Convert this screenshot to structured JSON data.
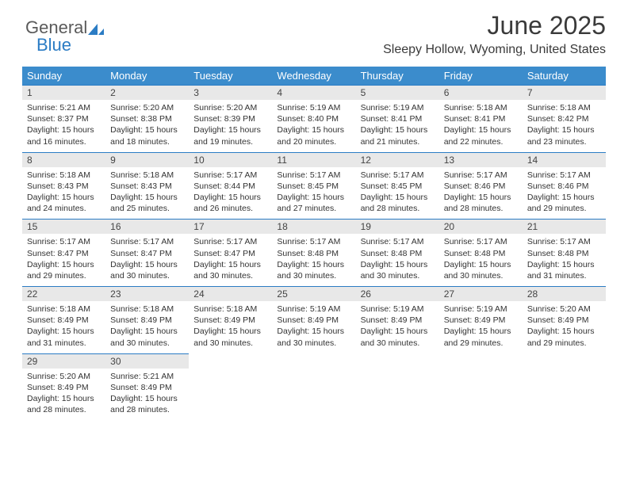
{
  "brand": {
    "word1": "General",
    "word2": "Blue",
    "icon_color": "#2b7cc4"
  },
  "title": "June 2025",
  "subtitle": "Sleepy Hollow, Wyoming, United States",
  "colors": {
    "header_bg": "#3b8ccc",
    "header_text": "#ffffff",
    "daynum_bg": "#e8e8e8",
    "divider": "#2b7cc4",
    "text": "#333333"
  },
  "weekdays": [
    "Sunday",
    "Monday",
    "Tuesday",
    "Wednesday",
    "Thursday",
    "Friday",
    "Saturday"
  ],
  "days": [
    {
      "n": 1,
      "sunrise": "5:21 AM",
      "sunset": "8:37 PM",
      "daylight": "15 hours and 16 minutes."
    },
    {
      "n": 2,
      "sunrise": "5:20 AM",
      "sunset": "8:38 PM",
      "daylight": "15 hours and 18 minutes."
    },
    {
      "n": 3,
      "sunrise": "5:20 AM",
      "sunset": "8:39 PM",
      "daylight": "15 hours and 19 minutes."
    },
    {
      "n": 4,
      "sunrise": "5:19 AM",
      "sunset": "8:40 PM",
      "daylight": "15 hours and 20 minutes."
    },
    {
      "n": 5,
      "sunrise": "5:19 AM",
      "sunset": "8:41 PM",
      "daylight": "15 hours and 21 minutes."
    },
    {
      "n": 6,
      "sunrise": "5:18 AM",
      "sunset": "8:41 PM",
      "daylight": "15 hours and 22 minutes."
    },
    {
      "n": 7,
      "sunrise": "5:18 AM",
      "sunset": "8:42 PM",
      "daylight": "15 hours and 23 minutes."
    },
    {
      "n": 8,
      "sunrise": "5:18 AM",
      "sunset": "8:43 PM",
      "daylight": "15 hours and 24 minutes."
    },
    {
      "n": 9,
      "sunrise": "5:18 AM",
      "sunset": "8:43 PM",
      "daylight": "15 hours and 25 minutes."
    },
    {
      "n": 10,
      "sunrise": "5:17 AM",
      "sunset": "8:44 PM",
      "daylight": "15 hours and 26 minutes."
    },
    {
      "n": 11,
      "sunrise": "5:17 AM",
      "sunset": "8:45 PM",
      "daylight": "15 hours and 27 minutes."
    },
    {
      "n": 12,
      "sunrise": "5:17 AM",
      "sunset": "8:45 PM",
      "daylight": "15 hours and 28 minutes."
    },
    {
      "n": 13,
      "sunrise": "5:17 AM",
      "sunset": "8:46 PM",
      "daylight": "15 hours and 28 minutes."
    },
    {
      "n": 14,
      "sunrise": "5:17 AM",
      "sunset": "8:46 PM",
      "daylight": "15 hours and 29 minutes."
    },
    {
      "n": 15,
      "sunrise": "5:17 AM",
      "sunset": "8:47 PM",
      "daylight": "15 hours and 29 minutes."
    },
    {
      "n": 16,
      "sunrise": "5:17 AM",
      "sunset": "8:47 PM",
      "daylight": "15 hours and 30 minutes."
    },
    {
      "n": 17,
      "sunrise": "5:17 AM",
      "sunset": "8:47 PM",
      "daylight": "15 hours and 30 minutes."
    },
    {
      "n": 18,
      "sunrise": "5:17 AM",
      "sunset": "8:48 PM",
      "daylight": "15 hours and 30 minutes."
    },
    {
      "n": 19,
      "sunrise": "5:17 AM",
      "sunset": "8:48 PM",
      "daylight": "15 hours and 30 minutes."
    },
    {
      "n": 20,
      "sunrise": "5:17 AM",
      "sunset": "8:48 PM",
      "daylight": "15 hours and 30 minutes."
    },
    {
      "n": 21,
      "sunrise": "5:17 AM",
      "sunset": "8:48 PM",
      "daylight": "15 hours and 31 minutes."
    },
    {
      "n": 22,
      "sunrise": "5:18 AM",
      "sunset": "8:49 PM",
      "daylight": "15 hours and 31 minutes."
    },
    {
      "n": 23,
      "sunrise": "5:18 AM",
      "sunset": "8:49 PM",
      "daylight": "15 hours and 30 minutes."
    },
    {
      "n": 24,
      "sunrise": "5:18 AM",
      "sunset": "8:49 PM",
      "daylight": "15 hours and 30 minutes."
    },
    {
      "n": 25,
      "sunrise": "5:19 AM",
      "sunset": "8:49 PM",
      "daylight": "15 hours and 30 minutes."
    },
    {
      "n": 26,
      "sunrise": "5:19 AM",
      "sunset": "8:49 PM",
      "daylight": "15 hours and 30 minutes."
    },
    {
      "n": 27,
      "sunrise": "5:19 AM",
      "sunset": "8:49 PM",
      "daylight": "15 hours and 29 minutes."
    },
    {
      "n": 28,
      "sunrise": "5:20 AM",
      "sunset": "8:49 PM",
      "daylight": "15 hours and 29 minutes."
    },
    {
      "n": 29,
      "sunrise": "5:20 AM",
      "sunset": "8:49 PM",
      "daylight": "15 hours and 28 minutes."
    },
    {
      "n": 30,
      "sunrise": "5:21 AM",
      "sunset": "8:49 PM",
      "daylight": "15 hours and 28 minutes."
    }
  ],
  "labels": {
    "sunrise": "Sunrise:",
    "sunset": "Sunset:",
    "daylight": "Daylight:"
  }
}
